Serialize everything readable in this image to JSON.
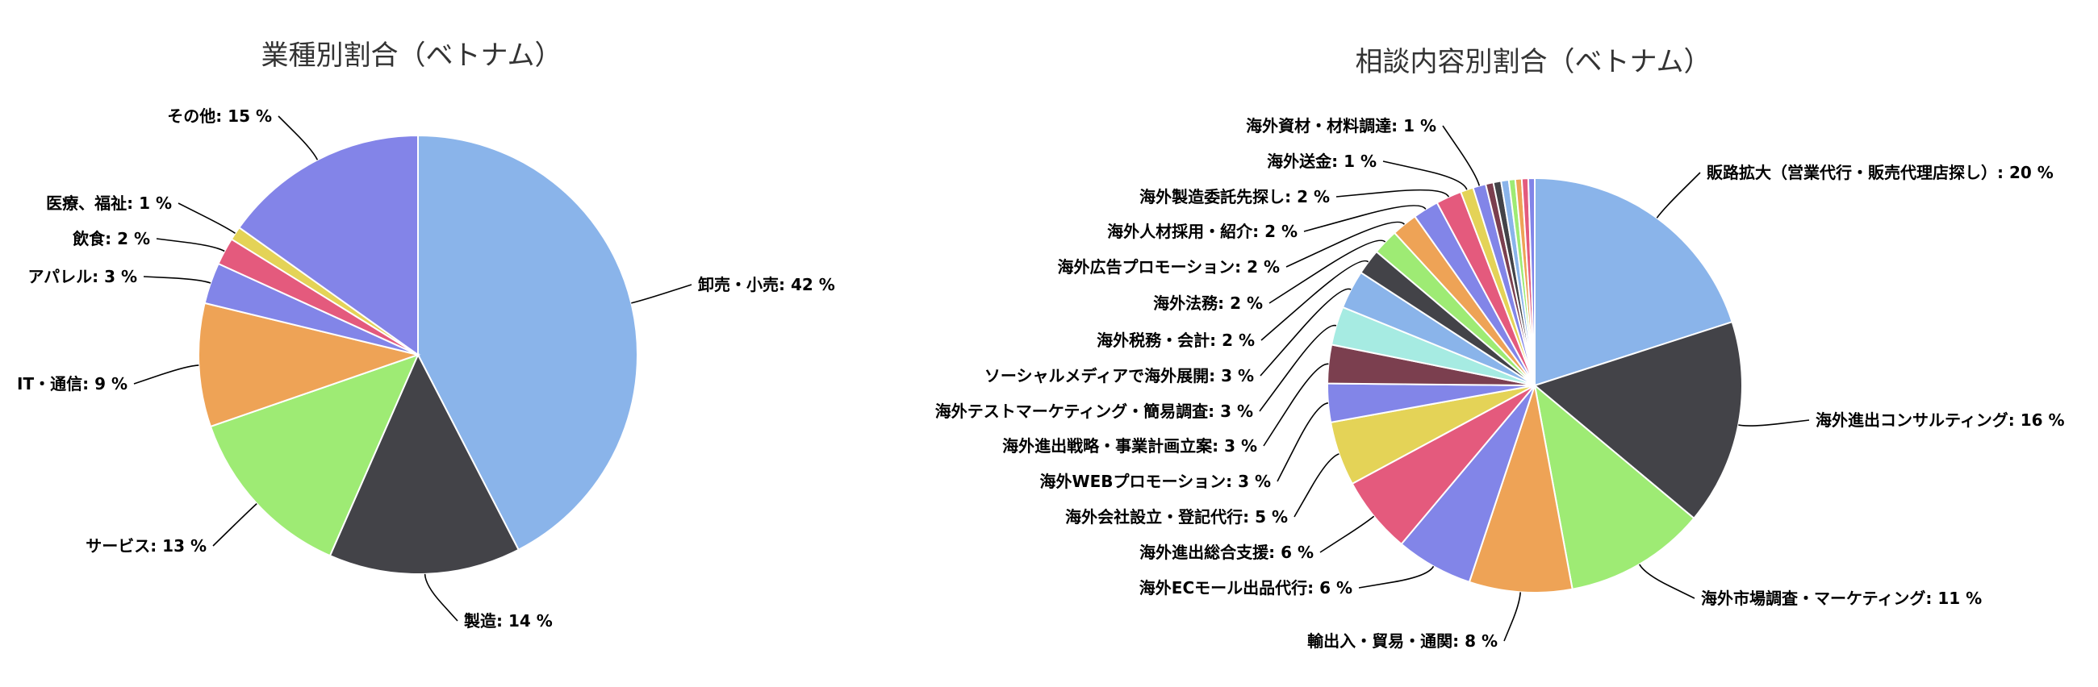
{
  "chart_data": [
    {
      "type": "pie",
      "title": "業種別割合（ベトナム）",
      "value_suffix": " %",
      "slices": [
        {
          "label": "卸売・小売",
          "value": 42,
          "color": "#8ab4ea"
        },
        {
          "label": "製造",
          "value": 14,
          "color": "#434348"
        },
        {
          "label": "サービス",
          "value": 13,
          "color": "#9eeb74"
        },
        {
          "label": "IT・通信",
          "value": 9,
          "color": "#eea356"
        },
        {
          "label": "アパレル",
          "value": 3,
          "color": "#8285e8"
        },
        {
          "label": "飲食",
          "value": 2,
          "color": "#e45a7d"
        },
        {
          "label": "医療、福祉",
          "value": 1,
          "color": "#e4d357"
        },
        {
          "label": "その他",
          "value": 15,
          "color": "#8384e8"
        }
      ]
    },
    {
      "type": "pie",
      "title": "相談内容別割合（ベトナム）",
      "value_suffix": " %",
      "slices": [
        {
          "label": "販路拡大（営業代行・販売代理店探し）",
          "value": 20,
          "color": "#8ab4ea"
        },
        {
          "label": "海外進出コンサルティング",
          "value": 16,
          "color": "#434348"
        },
        {
          "label": "海外市場調査・マーケティング",
          "value": 11,
          "color": "#9eeb74"
        },
        {
          "label": "輸出入・貿易・通関",
          "value": 8,
          "color": "#eea356"
        },
        {
          "label": "海外ECモール出品代行",
          "value": 6,
          "color": "#8285e8"
        },
        {
          "label": "海外進出総合支援",
          "value": 6,
          "color": "#e45a7d"
        },
        {
          "label": "海外会社設立・登記代行",
          "value": 5,
          "color": "#e4d357"
        },
        {
          "label": "海外WEBプロモーション",
          "value": 3,
          "color": "#8285e8"
        },
        {
          "label": "海外進出戦略・事業計画立案",
          "value": 3,
          "color": "#7b3f4f"
        },
        {
          "label": "海外テストマーケティング・簡易調査",
          "value": 3,
          "color": "#a6ebe2"
        },
        {
          "label": "ソーシャルメディアで海外展開",
          "value": 3,
          "color": "#8ab4ea"
        },
        {
          "label": "海外税務・会計",
          "value": 2,
          "color": "#434348"
        },
        {
          "label": "海外法務",
          "value": 2,
          "color": "#9eeb74"
        },
        {
          "label": "海外広告プロモーション",
          "value": 2,
          "color": "#eea356"
        },
        {
          "label": "海外人材採用・紹介",
          "value": 2,
          "color": "#8285e8"
        },
        {
          "label": "海外製造委託先探し",
          "value": 2,
          "color": "#e45a7d"
        },
        {
          "label": "海外送金",
          "value": 1,
          "color": "#e4d357"
        },
        {
          "label": "海外資材・材料調達",
          "value": 1,
          "color": "#8285e8"
        },
        {
          "label": "",
          "value": 0.6,
          "color": "#7b3f4f"
        },
        {
          "label": "",
          "value": 0.6,
          "color": "#434348"
        },
        {
          "label": "",
          "value": 0.6,
          "color": "#8ab4ea"
        },
        {
          "label": "",
          "value": 0.5,
          "color": "#9eeb74"
        },
        {
          "label": "",
          "value": 0.5,
          "color": "#eea356"
        },
        {
          "label": "",
          "value": 0.5,
          "color": "#e45a7d"
        },
        {
          "label": "",
          "value": 0.5,
          "color": "#8285e8"
        }
      ]
    }
  ]
}
